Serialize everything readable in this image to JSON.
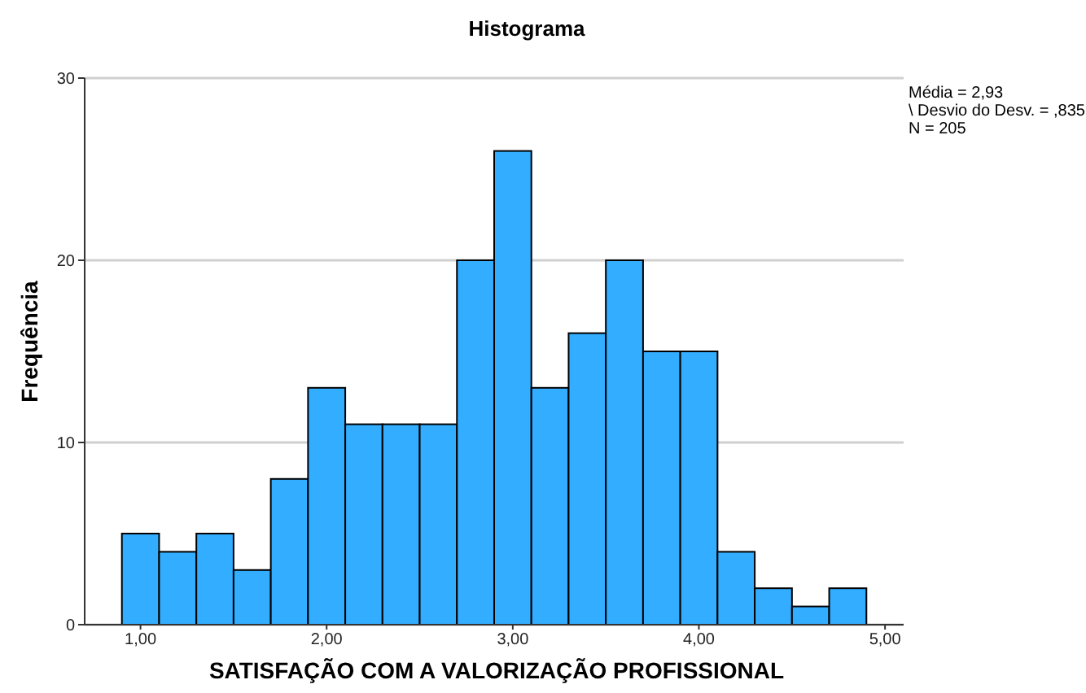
{
  "chart_data": {
    "type": "histogram",
    "title": "Histograma",
    "xlabel": "SATISFAÇÃO COM A VALORIZAÇÃO PROFISSIONAL",
    "ylabel": "Frequência",
    "bins": [
      0.9,
      1.1,
      1.3,
      1.5,
      1.7,
      1.9,
      2.1,
      2.3,
      2.5,
      2.7,
      2.9,
      3.1,
      3.3,
      3.5,
      3.7,
      3.9,
      4.1,
      4.3,
      4.5,
      4.7,
      4.9
    ],
    "values": [
      5,
      4,
      5,
      3,
      8,
      13,
      11,
      11,
      11,
      20,
      26,
      13,
      16,
      20,
      15,
      15,
      4,
      2,
      1,
      2
    ],
    "color": "#33adff",
    "xlim": [
      0.7,
      5.1
    ],
    "xticks": [
      {
        "value": 1,
        "label": "1,00"
      },
      {
        "value": 2,
        "label": "2,00"
      },
      {
        "value": 3,
        "label": "3,00"
      },
      {
        "value": 4,
        "label": "4,00"
      },
      {
        "value": 5,
        "label": "5,00"
      }
    ],
    "ylim": [
      0,
      30
    ],
    "yticks": [
      0,
      10,
      20,
      30
    ],
    "grid": "y",
    "annotations": [
      "Média = 2,93",
      "\\ Desvio do Desv. = ,835",
      "N = 205"
    ]
  }
}
